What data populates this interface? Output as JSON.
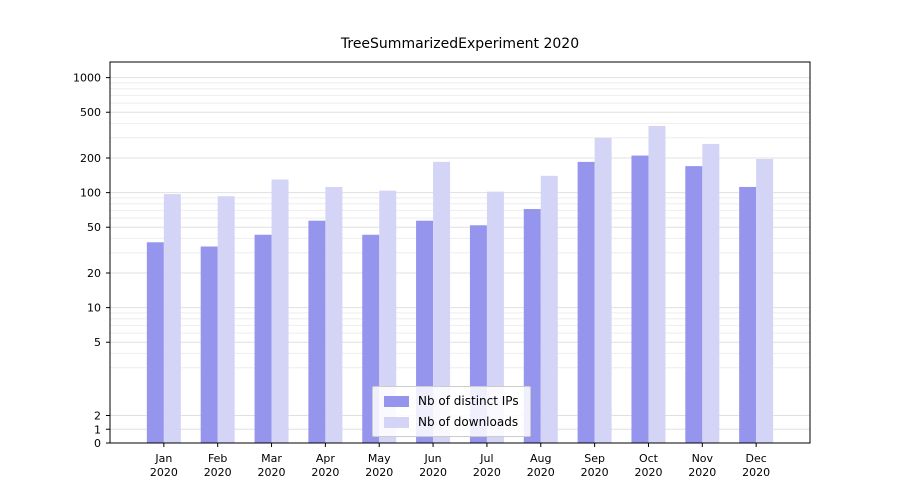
{
  "title": "TreeSummarizedExperiment 2020",
  "chart_data": {
    "type": "bar",
    "title": "TreeSummarizedExperiment 2020",
    "xlabel": "",
    "ylabel": "",
    "yscale": "symlog",
    "grid": true,
    "legend_position": "lower center",
    "ylim": [
      0,
      1300
    ],
    "yticks": [
      0,
      1,
      2,
      5,
      10,
      20,
      50,
      100,
      200,
      500,
      1000
    ],
    "categories": [
      "Jan 2020",
      "Feb 2020",
      "Mar 2020",
      "Apr 2020",
      "May 2020",
      "Jun 2020",
      "Jul 2020",
      "Aug 2020",
      "Sep 2020",
      "Oct 2020",
      "Nov 2020",
      "Dec 2020"
    ],
    "series": [
      {
        "name": "Nb of distinct IPs",
        "color": "#9595ee",
        "values": [
          37,
          34,
          43,
          57,
          43,
          57,
          52,
          72,
          185,
          210,
          170,
          112
        ]
      },
      {
        "name": "Nb of downloads",
        "color": "#d4d4f6",
        "values": [
          97,
          93,
          130,
          112,
          104,
          185,
          102,
          140,
          300,
          380,
          265,
          196
        ]
      }
    ],
    "colors": {
      "plot_border": "#000000",
      "grid_major": "#e0e0e0",
      "grid_minor": "#eeeeee",
      "background": "#ffffff"
    }
  }
}
